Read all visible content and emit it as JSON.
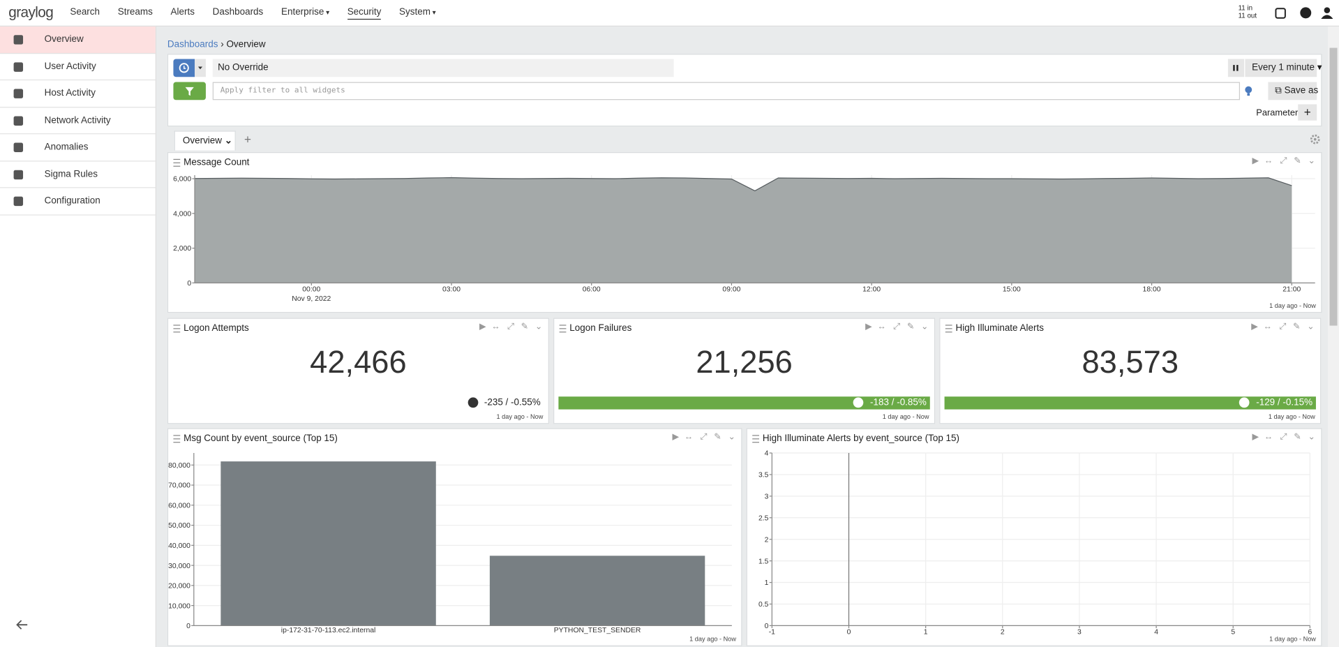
{
  "nav": {
    "logo": "graylog",
    "items": [
      "Search",
      "Streams",
      "Alerts",
      "Dashboards",
      "Enterprise",
      "Security",
      "System"
    ],
    "throughput": [
      "11 in",
      "11 out"
    ]
  },
  "sidebar": [
    "Overview",
    "User Activity",
    "Host Activity",
    "Network Activity",
    "Anomalies",
    "Sigma Rules",
    "Configuration"
  ],
  "breadcrumb": [
    "Dashboards",
    "Overview"
  ],
  "toolbar": {
    "override": "No Override",
    "refresh": "Every 1 minute",
    "filter_placeholder": "Apply filter to all widgets",
    "save": "Save as",
    "parameters": "Parameters"
  },
  "tab": "Overview",
  "widgets": [
    {
      "title": "Logon Attempts",
      "value": 42466,
      "value_label": "42,466",
      "trend": "-235 / -0.55%",
      "footer": "1 day ago - Now"
    },
    {
      "title": "Logon Failures",
      "value": 21256,
      "value_label": "21,256",
      "trend": "-183 / -0.85%",
      "trend_color": "#6aaa46",
      "footer": "1 day ago - Now"
    },
    {
      "title": "High Illuminate Alerts",
      "value": 83573,
      "value_label": "83,573",
      "trend": "-129 / -0.15%",
      "trend_color": "#6aaa46",
      "footer": "1 day ago - Now"
    }
  ],
  "chart_data": [
    {
      "type": "area",
      "title": "Message Count",
      "footer": "1 day ago - Now",
      "color": "#a4a9a9",
      "line_color": "#555b5e",
      "x": [
        "2022-11-08T21:30",
        "2022-11-08T22:00",
        "2022-11-08T22:30",
        "2022-11-08T23:00",
        "2022-11-08T23:30",
        "2022-11-09T00:00",
        "2022-11-09T00:30",
        "2022-11-09T01:00",
        "2022-11-09T01:30",
        "2022-11-09T02:00",
        "2022-11-09T02:30",
        "2022-11-09T03:00",
        "2022-11-09T03:30",
        "2022-11-09T04:00",
        "2022-11-09T04:30",
        "2022-11-09T05:00",
        "2022-11-09T05:30",
        "2022-11-09T06:00",
        "2022-11-09T06:30",
        "2022-11-09T07:00",
        "2022-11-09T07:30",
        "2022-11-09T08:00",
        "2022-11-09T08:30",
        "2022-11-09T09:00",
        "2022-11-09T09:30",
        "2022-11-09T10:00",
        "2022-11-09T10:30",
        "2022-11-09T11:00",
        "2022-11-09T11:30",
        "2022-11-09T12:00",
        "2022-11-09T12:30",
        "2022-11-09T13:00",
        "2022-11-09T13:30",
        "2022-11-09T14:00",
        "2022-11-09T14:30",
        "2022-11-09T15:00",
        "2022-11-09T15:30",
        "2022-11-09T16:00",
        "2022-11-09T16:30",
        "2022-11-09T17:00",
        "2022-11-09T17:30",
        "2022-11-09T18:00",
        "2022-11-09T18:30",
        "2022-11-09T19:00",
        "2022-11-09T19:30",
        "2022-11-09T20:00",
        "2022-11-09T20:30",
        "2022-11-09T21:00"
      ],
      "values": [
        6010,
        6020,
        6030,
        6020,
        6010,
        5990,
        5980,
        5990,
        6000,
        6010,
        6040,
        6060,
        6030,
        6010,
        6000,
        6010,
        6020,
        6010,
        6000,
        6030,
        6050,
        6040,
        6010,
        5980,
        5300,
        6040,
        6030,
        6020,
        6010,
        6020,
        6000,
        6010,
        6020,
        6010,
        6000,
        6000,
        5990,
        5980,
        5990,
        6010,
        6020,
        6040,
        6020,
        6000,
        6010,
        6030,
        6050,
        5600
      ],
      "xlim": [
        "2022-11-08T21:30",
        "2022-11-09T21:30"
      ],
      "xticks": [
        {
          "value": "2022-11-09T00:00",
          "label": "00:00"
        },
        {
          "value": "2022-11-09T03:00",
          "label": "03:00"
        },
        {
          "value": "2022-11-09T06:00",
          "label": "06:00"
        },
        {
          "value": "2022-11-09T09:00",
          "label": "09:00"
        },
        {
          "value": "2022-11-09T12:00",
          "label": "12:00"
        },
        {
          "value": "2022-11-09T15:00",
          "label": "15:00"
        },
        {
          "value": "2022-11-09T18:00",
          "label": "18:00"
        },
        {
          "value": "2022-11-09T21:00",
          "label": "21:00"
        }
      ],
      "x_date_label": "Nov 9, 2022",
      "ylim": [
        0,
        6200
      ],
      "yticks": [
        0,
        {
          "value": 2000,
          "label": "2,000"
        },
        {
          "value": 4000,
          "label": "4,000"
        },
        {
          "value": 6000,
          "label": "6,000"
        }
      ],
      "grid": true
    },
    {
      "type": "bar",
      "title": "Msg Count by event_source (Top 15)",
      "footer": "1 day ago - Now",
      "color": "#787f83",
      "categories": [
        "ip-172-31-70-113.ec2.internal",
        "PYTHON_TEST_SENDER"
      ],
      "values": [
        81800,
        34800
      ],
      "ylim": [
        0,
        86000
      ],
      "yticks": [
        0,
        {
          "value": 10000,
          "label": "10,000"
        },
        {
          "value": 20000,
          "label": "20,000"
        },
        {
          "value": 30000,
          "label": "30,000"
        },
        {
          "value": 40000,
          "label": "40,000"
        },
        {
          "value": 50000,
          "label": "50,000"
        },
        {
          "value": 60000,
          "label": "60,000"
        },
        {
          "value": 70000,
          "label": "70,000"
        },
        {
          "value": 80000,
          "label": "80,000"
        }
      ],
      "grid": true
    },
    {
      "type": "scatter",
      "title": "High Illuminate Alerts by event_source (Top 15)",
      "footer": "1 day ago - Now",
      "x": [],
      "values": [],
      "xlim": [
        -1,
        6
      ],
      "xticks": [
        -1,
        0,
        1,
        2,
        3,
        4,
        5,
        6
      ],
      "ylim": [
        0,
        4
      ],
      "yticks": [
        0,
        0.5,
        1,
        1.5,
        2,
        2.5,
        3,
        3.5,
        4
      ],
      "grid": true
    }
  ]
}
